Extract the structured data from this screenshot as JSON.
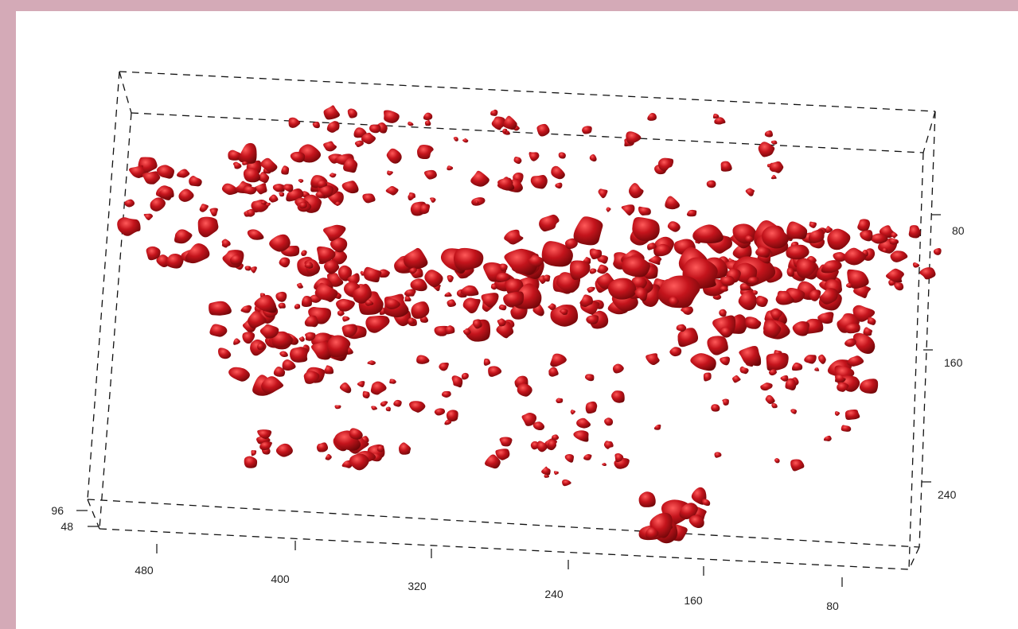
{
  "chart_data": {
    "type": "scatter",
    "subtype": "3d-isosurface",
    "title": "",
    "xlabel": "",
    "ylabel": "",
    "zlabel": "",
    "x_ticks": [
      "480",
      "400",
      "320",
      "240",
      "160",
      "80"
    ],
    "y_ticks": [
      "80",
      "160",
      "240"
    ],
    "z_ticks": [
      "96",
      "48"
    ],
    "xlim": [
      0,
      540
    ],
    "ylim": [
      0,
      300
    ],
    "zlim": [
      0,
      110
    ],
    "grid": false,
    "legend": "none",
    "bounding_box": "dashed",
    "surface_color": "#c4141c",
    "surface_shadow": "#6e0608",
    "surface_highlight": "#ff5a5a",
    "background": "#ffffff",
    "frame_color": "#d4aab7"
  }
}
